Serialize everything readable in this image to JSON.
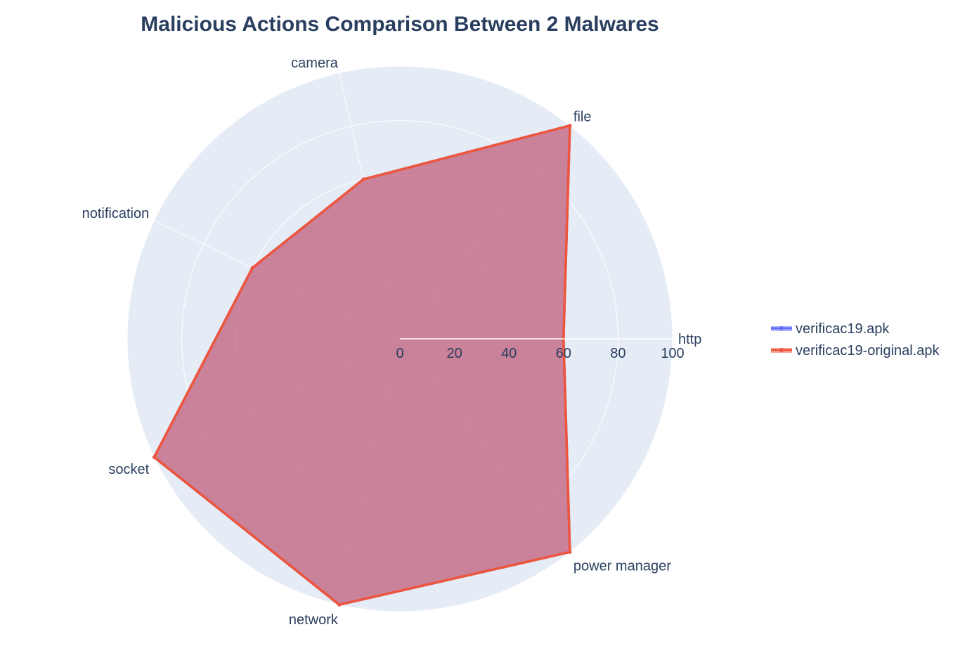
{
  "chart_data": {
    "type": "radar",
    "title": "Malicious Actions Comparison Between 2 Malwares",
    "categories": [
      "http",
      "file",
      "camera",
      "notification",
      "socket",
      "network",
      "power manager"
    ],
    "radial_range": [
      0,
      100
    ],
    "radial_ticks": [
      "0",
      "20",
      "40",
      "60",
      "80",
      "100"
    ],
    "radial_tick_values": [
      0,
      20,
      40,
      60,
      80,
      100
    ],
    "grid": true,
    "legend_position": "right",
    "series": [
      {
        "name": "verificac19.apk",
        "values": [
          60,
          100,
          60,
          60,
          100,
          100,
          100
        ],
        "color": "#636efa"
      },
      {
        "name": "verificac19-original.apk",
        "values": [
          60,
          100,
          60,
          60,
          100,
          100,
          100
        ],
        "color": "#ef553b"
      }
    ],
    "colors": {
      "polar_background": "#e5ecf6",
      "grid_line": "#ffffff",
      "text": "#2a3f5f"
    }
  }
}
